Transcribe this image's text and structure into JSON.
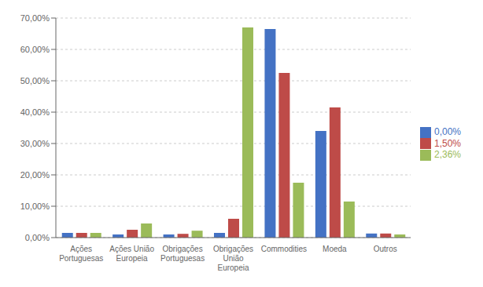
{
  "chart_data": {
    "type": "bar",
    "categories": [
      "Ações\nPortuguesas",
      "Ações União\nEuropeia",
      "Obrigações\nPortuguesas",
      "Obrigações\nUnião\nEuropeia",
      "Commodities",
      "Moeda",
      "Outros"
    ],
    "series": [
      {
        "name": "0,00%",
        "color": "#4472C4",
        "values": [
          0.015,
          0.01,
          0.01,
          0.015,
          0.665,
          0.34,
          0.013
        ]
      },
      {
        "name": "1,50%",
        "color": "#BE4B48",
        "values": [
          0.015,
          0.025,
          0.012,
          0.06,
          0.525,
          0.415,
          0.013
        ]
      },
      {
        "name": "2,36%",
        "color": "#9BBB59",
        "values": [
          0.015,
          0.045,
          0.022,
          0.67,
          0.175,
          0.115,
          0.01
        ]
      }
    ],
    "ylim": [
      0.0,
      0.7
    ],
    "yticks": [
      {
        "value": 0.0,
        "label": "0,00%"
      },
      {
        "value": 0.1,
        "label": "10,00%"
      },
      {
        "value": 0.2,
        "label": "20,00%"
      },
      {
        "value": 0.3,
        "label": "30,00%"
      },
      {
        "value": 0.4,
        "label": "40,00%"
      },
      {
        "value": 0.5,
        "label": "50,00%"
      },
      {
        "value": 0.6,
        "label": "60,00%"
      },
      {
        "value": 0.7,
        "label": "70,00%"
      }
    ],
    "grid": true,
    "legend": "right"
  }
}
